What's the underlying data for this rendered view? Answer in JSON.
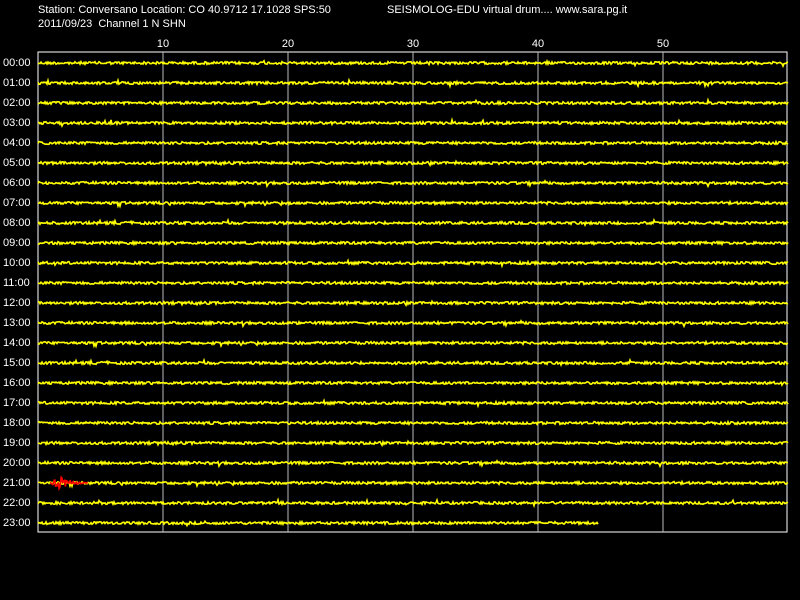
{
  "header": {
    "station": "Station: Conversano Location: CO 40.9712 17.1028 SPS:50",
    "program": "SEISMOLOG-EDU virtual drum.... www.sara.pg.it",
    "date_channel": "2011/09/23  Channel 1 N SHN"
  },
  "drum": {
    "xlim": [
      0,
      60
    ],
    "xticks": [
      10,
      20,
      30,
      40,
      50
    ],
    "rows": [
      "00:00",
      "01:00",
      "02:00",
      "03:00",
      "04:00",
      "05:00",
      "06:00",
      "07:00",
      "08:00",
      "09:00",
      "10:00",
      "11:00",
      "12:00",
      "13:00",
      "14:00",
      "15:00",
      "16:00",
      "17:00",
      "18:00",
      "19:00",
      "20:00",
      "21:00",
      "22:00",
      "23:00"
    ]
  }
}
